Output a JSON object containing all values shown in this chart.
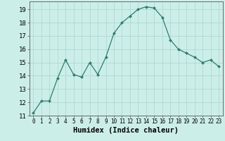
{
  "x": [
    0,
    1,
    2,
    3,
    4,
    5,
    6,
    7,
    8,
    9,
    10,
    11,
    12,
    13,
    14,
    15,
    16,
    17,
    18,
    19,
    20,
    21,
    22,
    23
  ],
  "y": [
    11.2,
    12.1,
    12.1,
    13.8,
    15.2,
    14.1,
    13.9,
    15.0,
    14.1,
    15.4,
    17.2,
    18.0,
    18.5,
    19.0,
    19.2,
    19.1,
    18.4,
    16.7,
    16.0,
    15.7,
    15.4,
    15.0,
    15.2,
    14.7
  ],
  "line_color": "#2e7d6e",
  "marker": "D",
  "marker_size": 2.0,
  "bg_color": "#cceee9",
  "grid_color": "#aad4cf",
  "xlabel": "Humidex (Indice chaleur)",
  "xlim": [
    -0.5,
    23.5
  ],
  "ylim": [
    11,
    19.6
  ],
  "yticks": [
    11,
    12,
    13,
    14,
    15,
    16,
    17,
    18,
    19
  ],
  "xticks": [
    0,
    1,
    2,
    3,
    4,
    5,
    6,
    7,
    8,
    9,
    10,
    11,
    12,
    13,
    14,
    15,
    16,
    17,
    18,
    19,
    20,
    21,
    22,
    23
  ],
  "xlabel_fontsize": 7.5,
  "ytick_fontsize": 6.5,
  "xtick_fontsize": 5.5
}
